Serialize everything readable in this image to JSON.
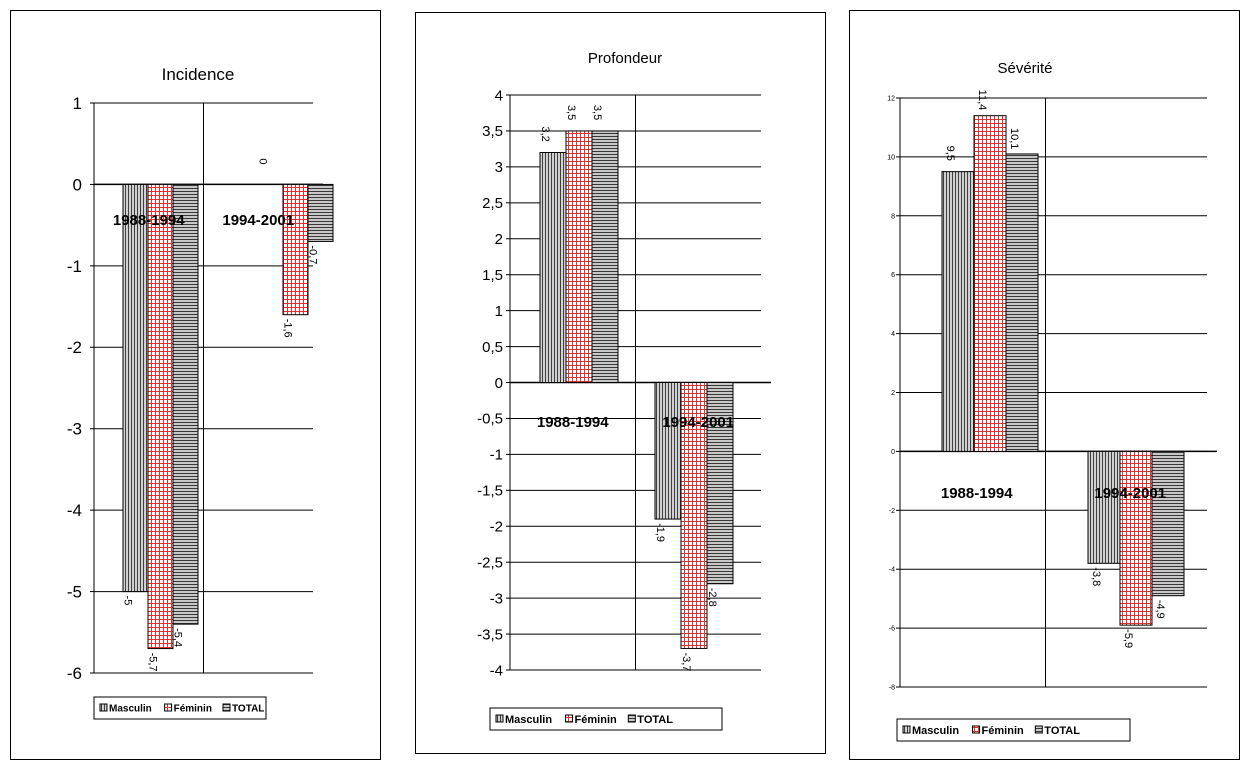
{
  "chart_data": [
    {
      "type": "bar",
      "title": "Incidence",
      "categories": [
        "1988-1994",
        "1994-2001"
      ],
      "series": [
        {
          "name": "Masculin",
          "values": [
            -5,
            0
          ],
          "labels": [
            "-5",
            "0"
          ]
        },
        {
          "name": "Féminin",
          "values": [
            -5.7,
            -1.6
          ],
          "labels": [
            "-5,7",
            "-1,6"
          ]
        },
        {
          "name": "TOTAL",
          "values": [
            -5.4,
            -0.7
          ],
          "labels": [
            "-5,4",
            "-0,7"
          ]
        }
      ],
      "ylim": [
        -6,
        1
      ],
      "yticks": [
        1,
        0,
        -1,
        -2,
        -3,
        -4,
        -5,
        -6
      ],
      "ytick_labels": [
        "1",
        "0",
        "-1",
        "-2",
        "-3",
        "-4",
        "-5",
        "-6"
      ],
      "grid": true,
      "legend": "bottom"
    },
    {
      "type": "bar",
      "title": "Profondeur",
      "categories": [
        "1988-1994",
        "1994-2001"
      ],
      "series": [
        {
          "name": "Masculin",
          "values": [
            3.2,
            -1.9
          ],
          "labels": [
            "3,2",
            "-1,9"
          ]
        },
        {
          "name": "Féminin",
          "values": [
            3.5,
            -3.7
          ],
          "labels": [
            "3,5",
            "-3,7"
          ]
        },
        {
          "name": "TOTAL",
          "values": [
            3.5,
            -2.8
          ],
          "labels": [
            "3,5",
            "-2,8"
          ]
        }
      ],
      "ylim": [
        -4,
        4
      ],
      "yticks": [
        4,
        3.5,
        3,
        2.5,
        2,
        1.5,
        1,
        0.5,
        0,
        -0.5,
        -1,
        -1.5,
        -2,
        -2.5,
        -3,
        -3.5,
        -4
      ],
      "ytick_labels": [
        "4",
        "3,5",
        "3",
        "2,5",
        "2",
        "1,5",
        "1",
        "0,5",
        "0",
        "-0,5",
        "-1",
        "-1,5",
        "-2",
        "-2,5",
        "-3",
        "-3,5",
        "-4"
      ],
      "grid": true,
      "legend": "bottom"
    },
    {
      "type": "bar",
      "title": "Sévérité",
      "categories": [
        "1988-1994",
        "1994-2001"
      ],
      "series": [
        {
          "name": "Masculin",
          "values": [
            9.5,
            -3.8
          ],
          "labels": [
            "9,5",
            "-3,8"
          ]
        },
        {
          "name": "Féminin",
          "values": [
            11.4,
            -5.9
          ],
          "labels": [
            "11,4",
            "-5,9"
          ]
        },
        {
          "name": "TOTAL",
          "values": [
            10.1,
            -4.9
          ],
          "labels": [
            "10,1",
            "-4,9"
          ]
        }
      ],
      "ylim": [
        -8,
        12
      ],
      "yticks": [
        12,
        10,
        8,
        6,
        4,
        2,
        0,
        -2,
        -4,
        -6,
        -8
      ],
      "ytick_labels": [
        "12",
        "10",
        "8",
        "6",
        "4",
        "2",
        "0",
        "-2",
        "-4",
        "-6",
        "-8"
      ],
      "grid": true,
      "legend": "bottom"
    }
  ],
  "series_colors": {
    "Masculin": "#a6a6a6",
    "Féminin": "#ffffff",
    "Féminin_pattern": "#e03030",
    "TOTAL": "#8c8c8c"
  }
}
